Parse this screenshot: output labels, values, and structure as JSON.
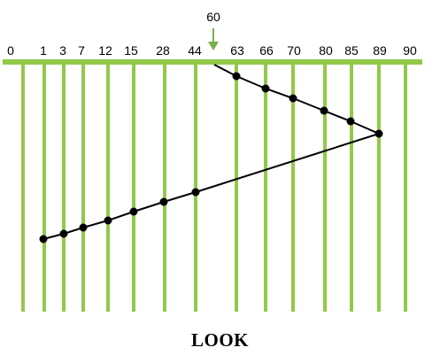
{
  "title": "LOOK",
  "head_start": {
    "value": "60",
    "marker": "down-arrow-icon"
  },
  "colors": {
    "track": "#92c94a",
    "path": "#000000",
    "head_arrow": "#77b04a"
  },
  "cylinders": [
    "0",
    "1",
    "3",
    "7",
    "12",
    "15",
    "28",
    "44",
    "63",
    "66",
    "70",
    "80",
    "85",
    "89",
    "90"
  ],
  "service_order": [
    "63",
    "66",
    "70",
    "80",
    "85",
    "89",
    "44",
    "28",
    "15",
    "12",
    "7",
    "3",
    "1"
  ]
}
